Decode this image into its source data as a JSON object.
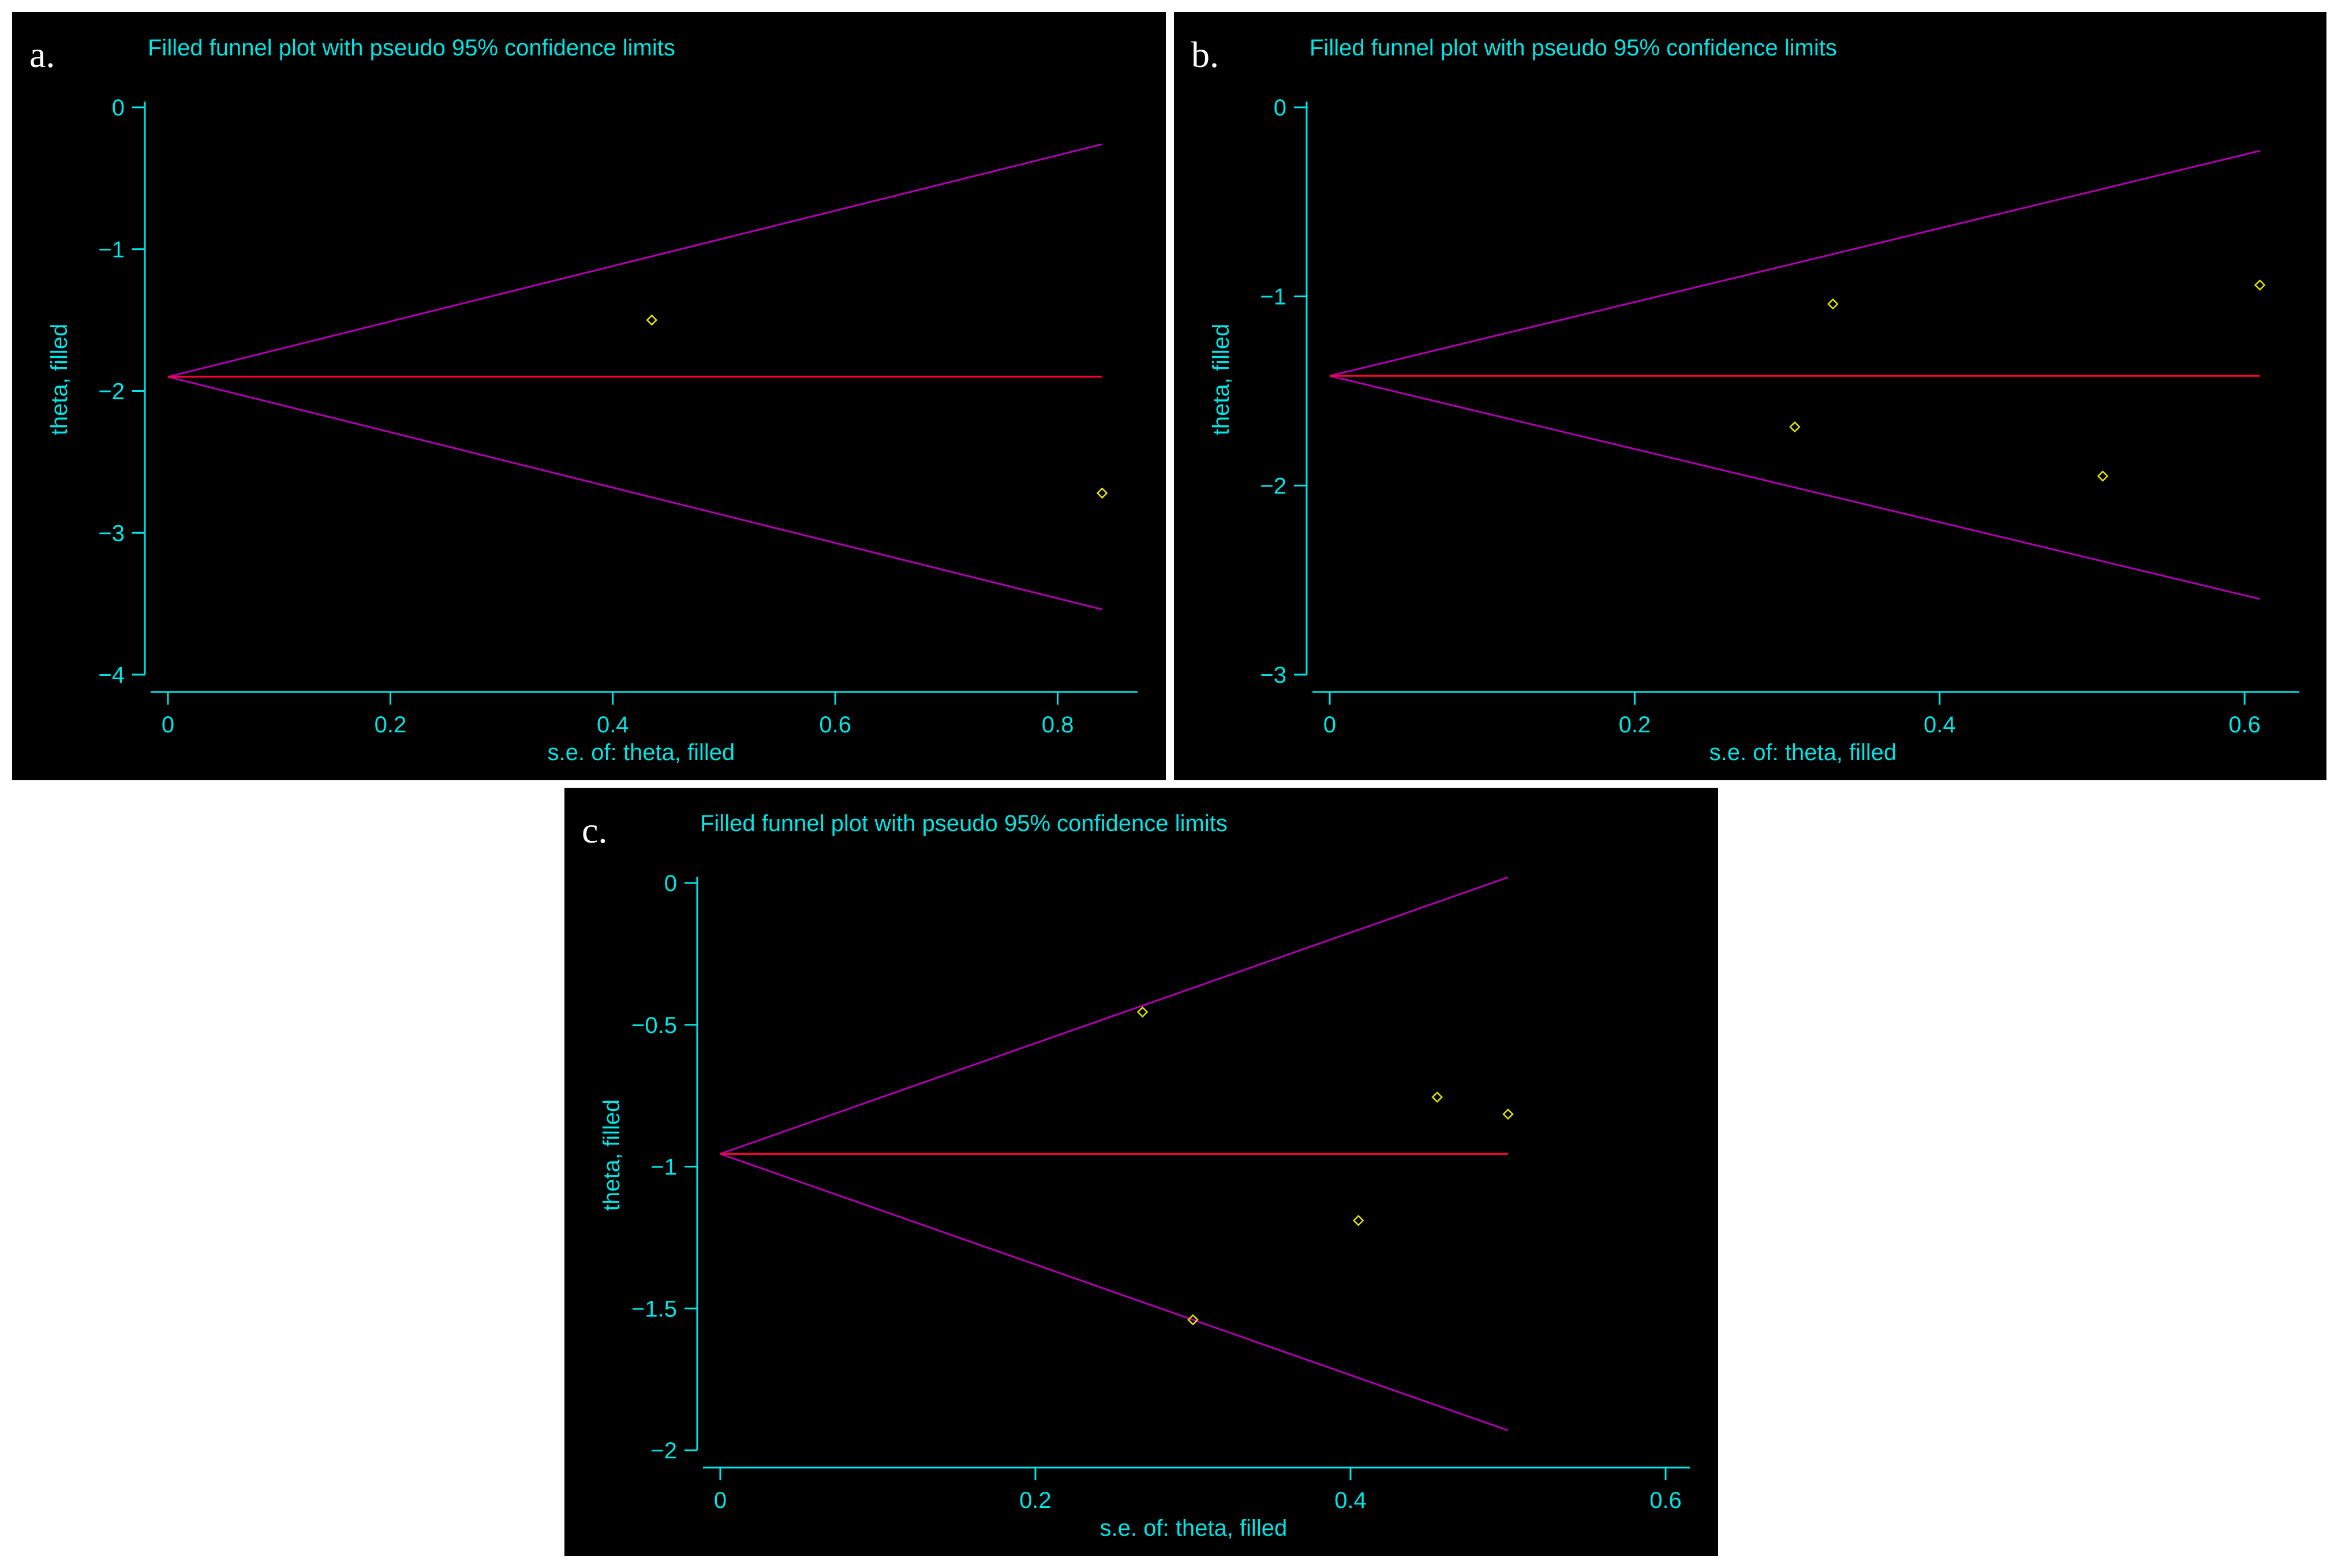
{
  "chart_data": [
    {
      "type": "scatter",
      "panel_label": "a.",
      "title": "Filled funnel plot with pseudo 95% confidence limits",
      "xlabel": "s.e. of: theta, filled",
      "ylabel": "theta, filled",
      "xlim": [
        0,
        0.85
      ],
      "ylim": [
        -4,
        0
      ],
      "xticks": [
        0,
        0.2,
        0.4,
        0.6,
        0.8
      ],
      "xtick_labels": [
        "0",
        "0.2",
        "0.4",
        "0.6",
        "0.8"
      ],
      "yticks": [
        0,
        -1,
        -2,
        -3,
        -4
      ],
      "ytick_labels": [
        "0",
        "−1",
        "−2",
        "−3",
        "−4"
      ],
      "pooled_effect": -1.9,
      "se_max": 0.84,
      "upper_limit_at_max": -0.26,
      "lower_limit_at_max": -3.54,
      "points": [
        {
          "x": 0.435,
          "y": -1.5
        },
        {
          "x": 0.84,
          "y": -2.72
        }
      ],
      "colors": {
        "ci": "#b000b0",
        "pooled": "#ff0033",
        "points": "#e6e600"
      }
    },
    {
      "type": "scatter",
      "panel_label": "b.",
      "title": "Filled funnel plot with pseudo 95% confidence limits",
      "xlabel": "s.e. of: theta, filled",
      "ylabel": "theta, filled",
      "xlim": [
        0,
        0.62
      ],
      "ylim": [
        -3,
        0
      ],
      "xticks": [
        0,
        0.2,
        0.4,
        0.6
      ],
      "xtick_labels": [
        "0",
        "0.2",
        "0.4",
        "0.6"
      ],
      "yticks": [
        0,
        -1,
        -2,
        -3
      ],
      "ytick_labels": [
        "0",
        "−1",
        "−2",
        "−3"
      ],
      "pooled_effect": -1.42,
      "se_max": 0.61,
      "upper_limit_at_max": -0.23,
      "lower_limit_at_max": -2.6,
      "points": [
        {
          "x": 0.33,
          "y": -1.04
        },
        {
          "x": 0.305,
          "y": -1.69
        },
        {
          "x": 0.507,
          "y": -1.95
        },
        {
          "x": 0.61,
          "y": -0.94
        }
      ],
      "colors": {
        "ci": "#b000b0",
        "pooled": "#ff0033",
        "points": "#e6e600"
      }
    },
    {
      "type": "scatter",
      "panel_label": "c.",
      "title": "Filled funnel plot with pseudo 95% confidence limits",
      "xlabel": "s.e. of: theta, filled",
      "ylabel": "theta, filled",
      "xlim": [
        0,
        0.6
      ],
      "ylim": [
        -2,
        0
      ],
      "xticks": [
        0,
        0.2,
        0.4,
        0.6
      ],
      "xtick_labels": [
        "0",
        "0.2",
        "0.4",
        "0.6"
      ],
      "yticks": [
        0,
        -0.5,
        -1,
        -1.5,
        -2
      ],
      "ytick_labels": [
        "0",
        "−0.5",
        "−1",
        "−1.5",
        "−2"
      ],
      "pooled_effect": -0.955,
      "se_max": 0.5,
      "upper_limit_at_max": 0.02,
      "lower_limit_at_max": -1.93,
      "points": [
        {
          "x": 0.268,
          "y": -0.455
        },
        {
          "x": 0.3,
          "y": -1.54
        },
        {
          "x": 0.405,
          "y": -1.19
        },
        {
          "x": 0.455,
          "y": -0.755
        },
        {
          "x": 0.5,
          "y": -0.815
        }
      ],
      "colors": {
        "ci": "#b000b0",
        "pooled": "#ff0033",
        "points": "#e6e600"
      }
    }
  ]
}
